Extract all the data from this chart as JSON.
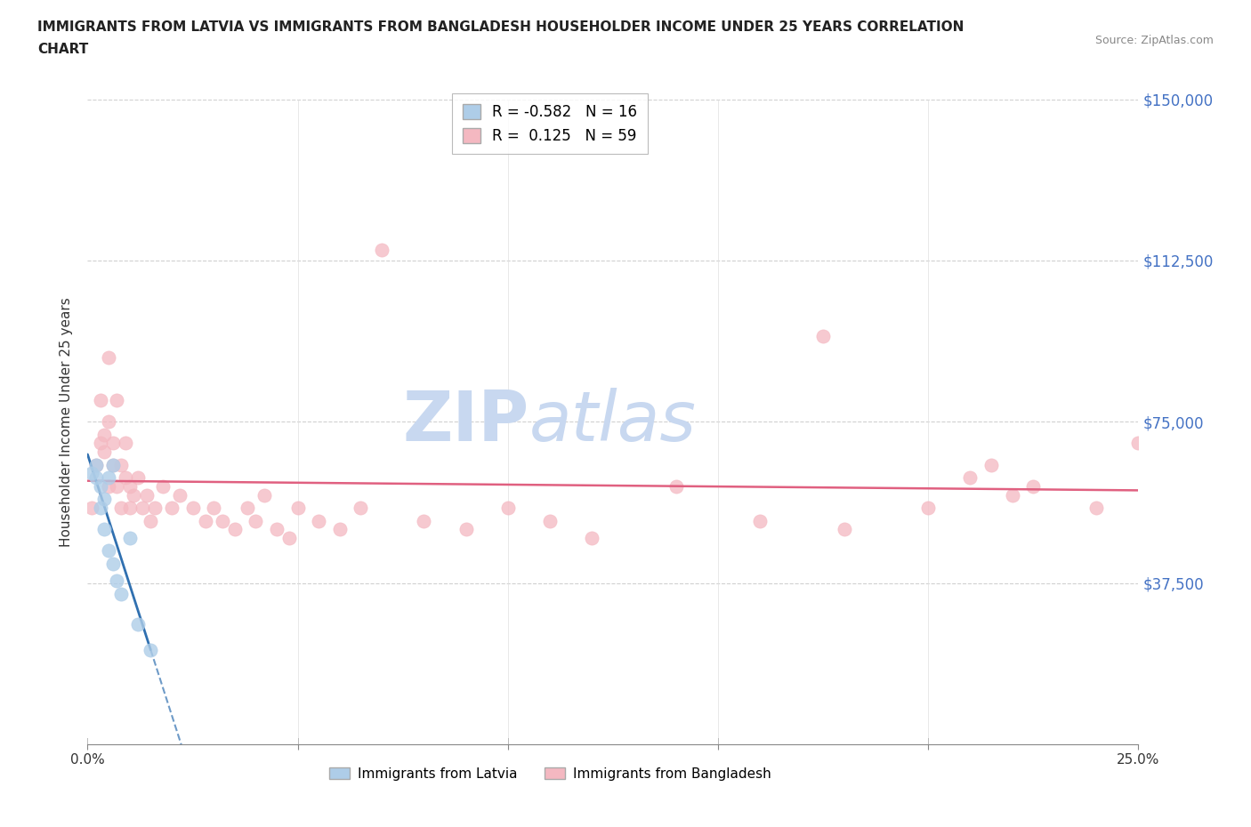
{
  "title_line1": "IMMIGRANTS FROM LATVIA VS IMMIGRANTS FROM BANGLADESH HOUSEHOLDER INCOME UNDER 25 YEARS CORRELATION",
  "title_line2": "CHART",
  "source": "Source: ZipAtlas.com",
  "ylabel": "Householder Income Under 25 years",
  "xlim": [
    0.0,
    0.25
  ],
  "ylim": [
    0,
    150000
  ],
  "yticks": [
    0,
    37500,
    75000,
    112500,
    150000
  ],
  "ytick_labels_right": [
    "",
    "$37,500",
    "$75,000",
    "$112,500",
    "$150,000"
  ],
  "xtick_positions": [
    0.0,
    0.05,
    0.1,
    0.15,
    0.2,
    0.25
  ],
  "xtick_labels": [
    "0.0%",
    "",
    "",
    "",
    "",
    "25.0%"
  ],
  "grid_color": "#d0d0d0",
  "background_color": "#ffffff",
  "latvia_color": "#aecde8",
  "bangladesh_color": "#f4b8c1",
  "latvia_R": -0.582,
  "latvia_N": 16,
  "bangladesh_R": 0.125,
  "bangladesh_N": 59,
  "latvia_line_color": "#3070b0",
  "bangladesh_line_color": "#e06080",
  "watermark_zip": "ZIP",
  "watermark_atlas": "atlas",
  "watermark_color": "#c8d8f0",
  "legend_label_latvia": "Immigrants from Latvia",
  "legend_label_bangladesh": "Immigrants from Bangladesh",
  "latvia_x": [
    0.001,
    0.002,
    0.002,
    0.003,
    0.003,
    0.004,
    0.004,
    0.005,
    0.005,
    0.006,
    0.006,
    0.007,
    0.008,
    0.01,
    0.012,
    0.015
  ],
  "latvia_y": [
    63000,
    65000,
    62000,
    60000,
    55000,
    57000,
    50000,
    62000,
    45000,
    65000,
    42000,
    38000,
    35000,
    48000,
    28000,
    22000
  ],
  "bangladesh_x": [
    0.001,
    0.002,
    0.003,
    0.003,
    0.004,
    0.004,
    0.005,
    0.005,
    0.005,
    0.006,
    0.006,
    0.007,
    0.007,
    0.008,
    0.008,
    0.009,
    0.009,
    0.01,
    0.01,
    0.011,
    0.012,
    0.013,
    0.014,
    0.015,
    0.016,
    0.018,
    0.02,
    0.022,
    0.025,
    0.028,
    0.03,
    0.032,
    0.035,
    0.038,
    0.04,
    0.042,
    0.045,
    0.048,
    0.05,
    0.055,
    0.06,
    0.065,
    0.07,
    0.08,
    0.09,
    0.1,
    0.11,
    0.12,
    0.14,
    0.16,
    0.175,
    0.18,
    0.2,
    0.21,
    0.215,
    0.22,
    0.225,
    0.24,
    0.25
  ],
  "bangladesh_y": [
    55000,
    65000,
    70000,
    80000,
    72000,
    68000,
    75000,
    60000,
    90000,
    70000,
    65000,
    80000,
    60000,
    65000,
    55000,
    70000,
    62000,
    55000,
    60000,
    58000,
    62000,
    55000,
    58000,
    52000,
    55000,
    60000,
    55000,
    58000,
    55000,
    52000,
    55000,
    52000,
    50000,
    55000,
    52000,
    58000,
    50000,
    48000,
    55000,
    52000,
    50000,
    55000,
    115000,
    52000,
    50000,
    55000,
    52000,
    48000,
    60000,
    52000,
    95000,
    50000,
    55000,
    62000,
    65000,
    58000,
    60000,
    55000,
    70000
  ]
}
